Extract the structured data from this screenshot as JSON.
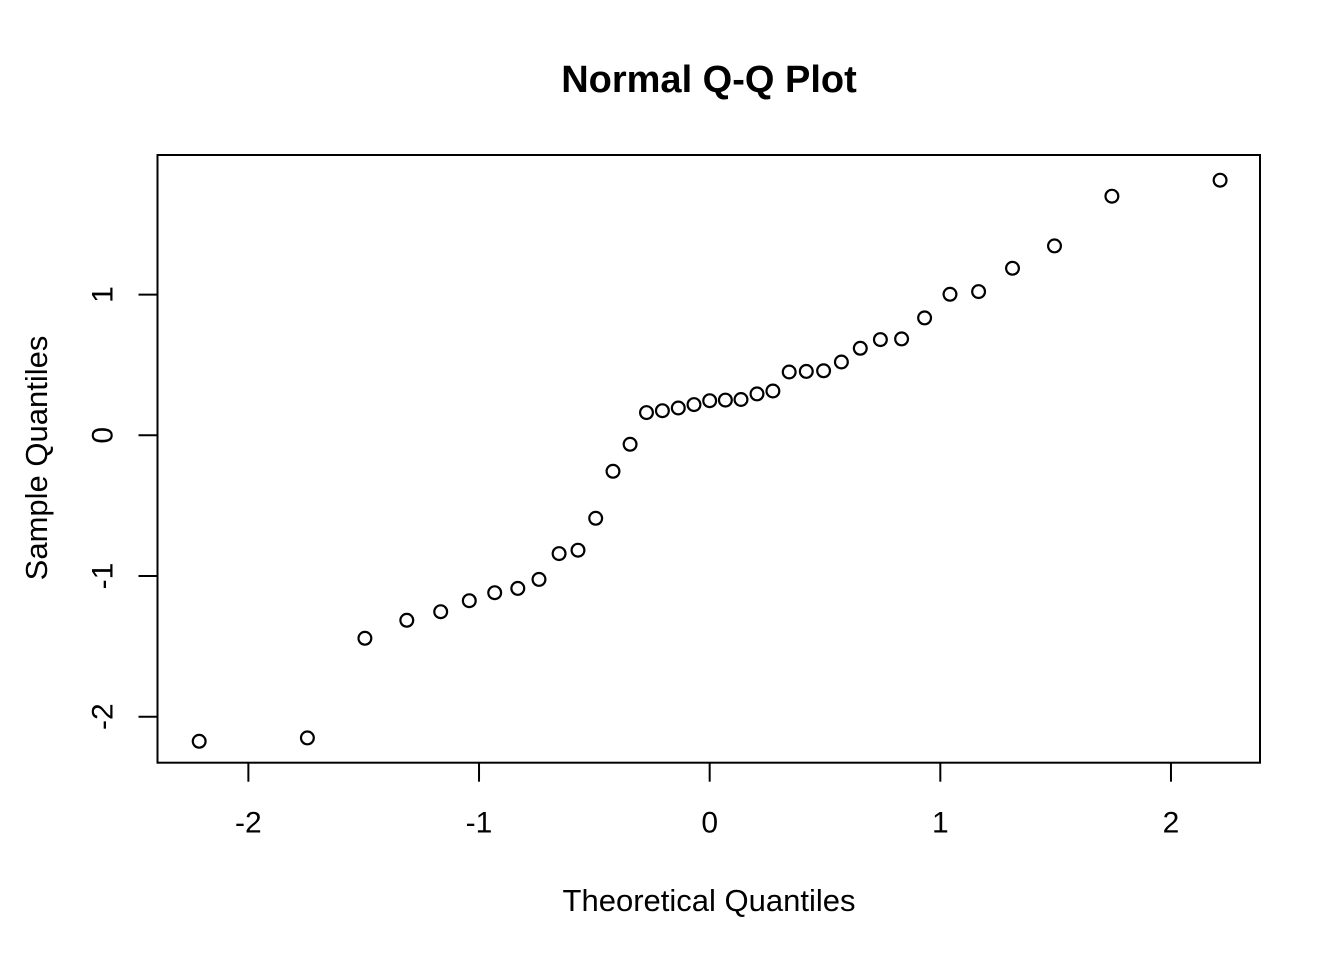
{
  "page": {
    "background_color": "#ffffff",
    "foreground_color": "#000000"
  },
  "chart_data": {
    "type": "scatter",
    "title": "Normal Q-Q Plot",
    "xlabel": "Theoretical Quantiles",
    "ylabel": "Sample Quantiles",
    "x_ticks": [
      -2,
      -1,
      0,
      1,
      2
    ],
    "y_ticks": [
      -2,
      -1,
      0,
      1
    ],
    "xlim": [
      -2.394,
      2.386
    ],
    "ylim": [
      -2.327,
      1.992
    ],
    "grid": false,
    "legend": "none",
    "marker": {
      "shape": "open-circle",
      "color": "#000000",
      "radius_px": 6.4,
      "stroke_px": 2.2
    },
    "n_points": 37,
    "series": [
      {
        "name": "sample-vs-theoretical-quantiles",
        "points": [
          [
            -2.213,
            -2.175
          ],
          [
            -1.744,
            -2.151
          ],
          [
            -1.495,
            -1.443
          ],
          [
            -1.313,
            -1.315
          ],
          [
            -1.166,
            -1.254
          ],
          [
            -1.042,
            -1.176
          ],
          [
            -0.932,
            -1.119
          ],
          [
            -0.832,
            -1.088
          ],
          [
            -0.74,
            -1.024
          ],
          [
            -0.653,
            -0.841
          ],
          [
            -0.571,
            -0.817
          ],
          [
            -0.494,
            -0.59
          ],
          [
            -0.419,
            -0.256
          ],
          [
            -0.345,
            -0.064
          ],
          [
            -0.274,
            0.161
          ],
          [
            -0.205,
            0.175
          ],
          [
            -0.136,
            0.194
          ],
          [
            -0.068,
            0.218
          ],
          [
            0.0,
            0.246
          ],
          [
            0.068,
            0.25
          ],
          [
            0.136,
            0.254
          ],
          [
            0.205,
            0.294
          ],
          [
            0.274,
            0.315
          ],
          [
            0.345,
            0.45
          ],
          [
            0.419,
            0.454
          ],
          [
            0.494,
            0.458
          ],
          [
            0.571,
            0.521
          ],
          [
            0.653,
            0.618
          ],
          [
            0.74,
            0.68
          ],
          [
            0.832,
            0.685
          ],
          [
            0.932,
            0.834
          ],
          [
            1.042,
            1.002
          ],
          [
            1.166,
            1.021
          ],
          [
            1.313,
            1.187
          ],
          [
            1.495,
            1.346
          ],
          [
            1.744,
            1.699
          ],
          [
            2.213,
            1.813
          ]
        ]
      }
    ]
  }
}
